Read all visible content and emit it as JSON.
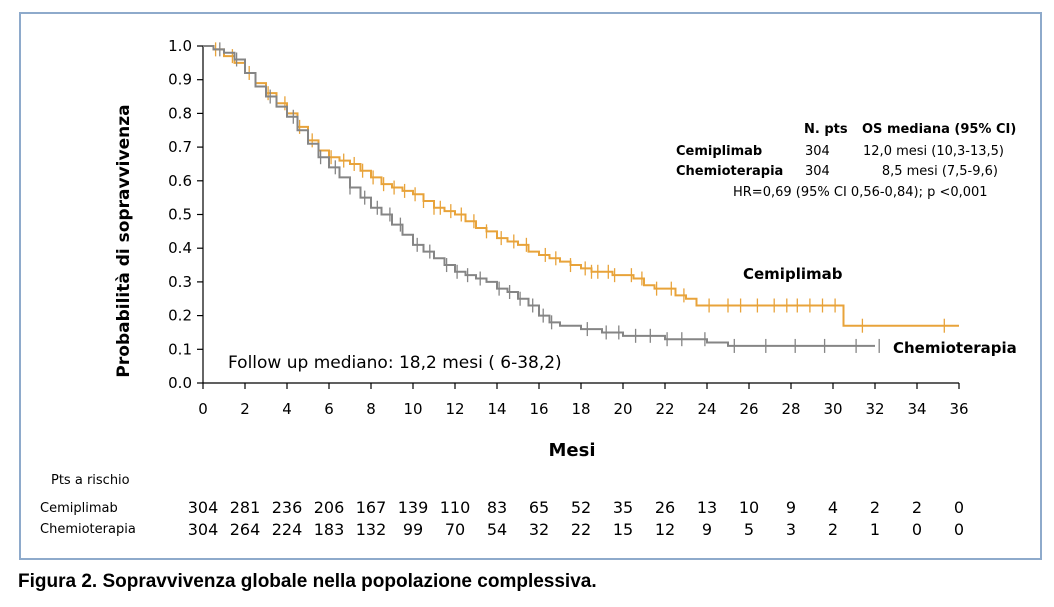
{
  "caption": "Figura 2. Sopravvivenza globale nella popolazione complessiva.",
  "chart_data": {
    "type": "line",
    "subtype": "kaplan-meier",
    "xlabel": "Mesi",
    "ylabel": "Probabilità di sopravvivenza",
    "xlim": [
      0,
      36
    ],
    "ylim": [
      0,
      1.0
    ],
    "x_ticks": [
      "0",
      "2",
      "4",
      "6",
      "8",
      "10",
      "12",
      "14",
      "16",
      "18",
      "20",
      "22",
      "24",
      "26",
      "28",
      "30",
      "32",
      "34",
      "36"
    ],
    "y_ticks": [
      "0.0",
      "0.1",
      "0.2",
      "0.3",
      "0.4",
      "0.5",
      "0.6",
      "0.7",
      "0.8",
      "0.9",
      "1.0"
    ],
    "grid": false,
    "colors": {
      "cemiplimab": "#e8a33a",
      "chemioterapia": "#858585"
    },
    "series": [
      {
        "name": "Cemiplimab",
        "color": "#e8a33a",
        "x": [
          0,
          0.5,
          1,
          1.5,
          2,
          2.5,
          3,
          3.5,
          4,
          4.5,
          5,
          5.5,
          6,
          6.5,
          7,
          7.5,
          8,
          8.5,
          9,
          9.5,
          10,
          10.5,
          11,
          11.5,
          12,
          12.5,
          13,
          13.5,
          14,
          14.5,
          15,
          15.5,
          16,
          16.5,
          17,
          17.5,
          18,
          18.5,
          19,
          19.5,
          20,
          20.5,
          21,
          21.5,
          22,
          22.5,
          23,
          23.5,
          24,
          25,
          26,
          27,
          28,
          29,
          30,
          30.5,
          31,
          32,
          33,
          34,
          35,
          36
        ],
        "y": [
          1.0,
          0.99,
          0.97,
          0.95,
          0.92,
          0.89,
          0.86,
          0.83,
          0.8,
          0.76,
          0.72,
          0.69,
          0.67,
          0.66,
          0.65,
          0.63,
          0.61,
          0.59,
          0.58,
          0.57,
          0.56,
          0.54,
          0.52,
          0.51,
          0.5,
          0.48,
          0.46,
          0.45,
          0.43,
          0.42,
          0.41,
          0.39,
          0.38,
          0.37,
          0.36,
          0.35,
          0.34,
          0.33,
          0.33,
          0.32,
          0.32,
          0.31,
          0.29,
          0.28,
          0.28,
          0.26,
          0.25,
          0.23,
          0.23,
          0.23,
          0.23,
          0.23,
          0.23,
          0.23,
          0.23,
          0.17,
          0.17,
          0.17,
          0.17,
          0.17,
          0.17,
          0.17
        ],
        "censor_x": [
          0.6,
          1.4,
          2.2,
          3.1,
          3.9,
          4.6,
          5.2,
          6.1,
          6.7,
          7.2,
          7.6,
          8.1,
          8.6,
          9.1,
          9.6,
          10.1,
          10.5,
          11.0,
          11.3,
          11.8,
          12.3,
          12.9,
          13.5,
          14.2,
          14.8,
          15.4,
          16.3,
          16.8,
          17.5,
          18.2,
          18.5,
          18.8,
          19.3,
          19.6,
          20.4,
          20.9,
          21.6,
          22.3,
          22.9,
          24.1,
          25.0,
          25.6,
          26.4,
          27.2,
          27.8,
          28.3,
          28.9,
          29.5,
          30.1,
          31.4,
          35.3
        ],
        "end_label": "Cemiplimab"
      },
      {
        "name": "Chemioterapia",
        "color": "#858585",
        "x": [
          0,
          0.5,
          1,
          1.5,
          2,
          2.5,
          3,
          3.5,
          4,
          4.5,
          5,
          5.5,
          6,
          6.5,
          7,
          7.5,
          8,
          8.5,
          9,
          9.5,
          10,
          10.5,
          11,
          11.5,
          12,
          12.5,
          13,
          13.5,
          14,
          14.5,
          15,
          15.5,
          16,
          16.5,
          17,
          18,
          19,
          20,
          21,
          22,
          23,
          24,
          25,
          26,
          27,
          28,
          29,
          30,
          31,
          32
        ],
        "y": [
          1.0,
          0.99,
          0.98,
          0.96,
          0.92,
          0.88,
          0.85,
          0.82,
          0.79,
          0.75,
          0.71,
          0.67,
          0.64,
          0.61,
          0.58,
          0.55,
          0.52,
          0.5,
          0.47,
          0.44,
          0.41,
          0.39,
          0.37,
          0.35,
          0.33,
          0.32,
          0.31,
          0.3,
          0.28,
          0.27,
          0.25,
          0.23,
          0.2,
          0.18,
          0.17,
          0.16,
          0.15,
          0.14,
          0.14,
          0.13,
          0.13,
          0.12,
          0.11,
          0.11,
          0.11,
          0.11,
          0.11,
          0.11,
          0.11,
          0.11
        ],
        "censor_x": [
          0.8,
          1.6,
          3.2,
          4.3,
          5.6,
          6.3,
          7.0,
          7.7,
          8.3,
          8.9,
          9.4,
          10.2,
          10.8,
          11.6,
          12.1,
          12.6,
          13.2,
          14.1,
          14.6,
          15.1,
          15.7,
          16.2,
          16.6,
          18.3,
          19.2,
          19.8,
          20.6,
          21.3,
          22.1,
          22.8,
          23.9,
          25.3,
          26.8,
          28.2,
          29.6,
          31.1,
          32.2
        ],
        "end_label": "Chemioterapia"
      }
    ],
    "annotation_box": {
      "headers": [
        "N. pts",
        "OS mediana (95% CI)"
      ],
      "rows": [
        {
          "arm": "Cemiplimab",
          "n": "304",
          "os": "12,0 mesi (10,3-13,5)"
        },
        {
          "arm": "Chemioterapia",
          "n": "304",
          "os": "8,5 mesi (7,5-9,6)"
        }
      ],
      "hr": "HR=0,69 (95% CI 0,56-0,84); p <0,001"
    },
    "follow_up": "Follow up mediano: 18,2 mesi ( 6-38,2)",
    "risk_table": {
      "title": "Pts a rischio",
      "rows": [
        {
          "label": "Cemiplimab",
          "values": [
            "304",
            "281",
            "236",
            "206",
            "167",
            "139",
            "110",
            "83",
            "65",
            "52",
            "35",
            "26",
            "13",
            "10",
            "9",
            "4",
            "2",
            "2",
            "0"
          ]
        },
        {
          "label": "Chemioterapia",
          "values": [
            "304",
            "264",
            "224",
            "183",
            "132",
            "99",
            "70",
            "54",
            "32",
            "22",
            "15",
            "12",
            "9",
            "5",
            "3",
            "2",
            "1",
            "0",
            "0"
          ]
        }
      ]
    }
  }
}
